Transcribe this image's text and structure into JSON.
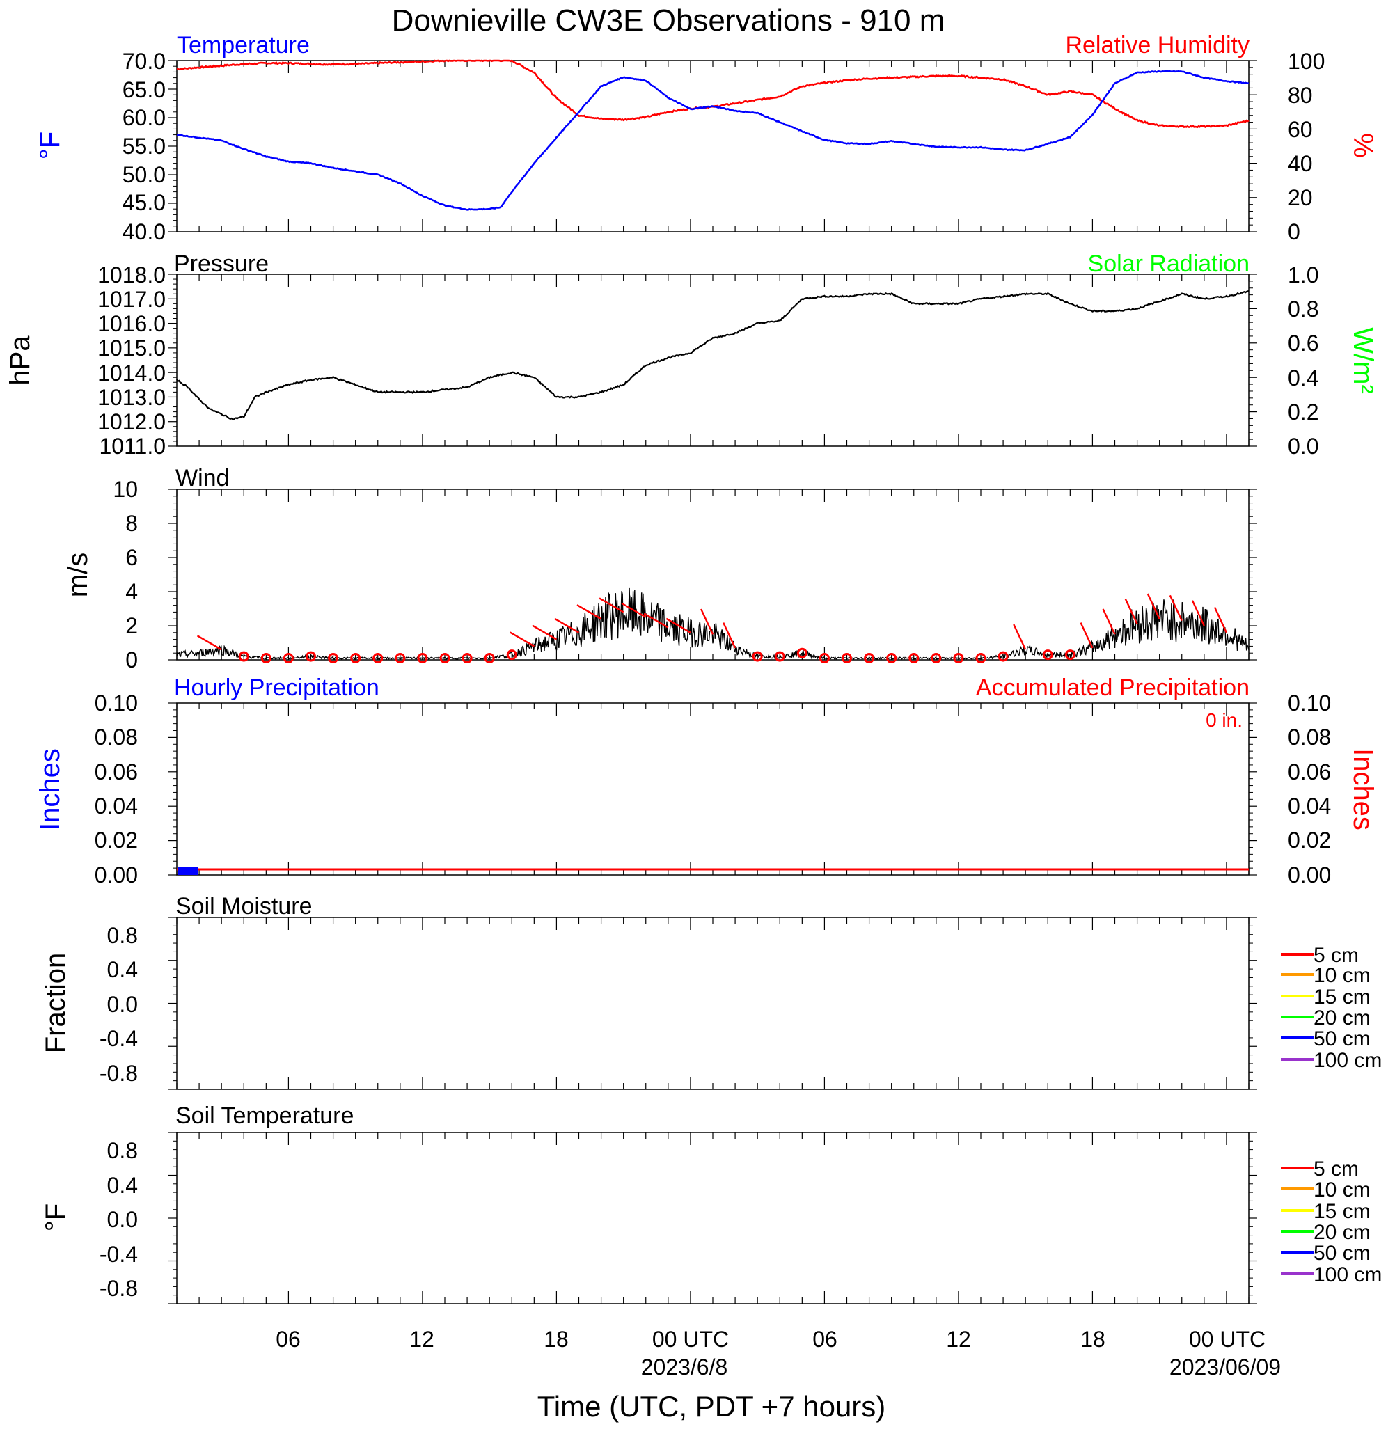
{
  "title": "Downieville CW3E Observations - 910 m",
  "xlabel": "Time (UTC, PDT +7 hours)",
  "x_ticks": [
    "06",
    "12",
    "18",
    "00 UTC",
    "06",
    "12",
    "18",
    "00 UTC"
  ],
  "x_dates": [
    "2023/6/8",
    "2023/06/09"
  ],
  "colors": {
    "temperature": "#0000ff",
    "humidity": "#ff0000",
    "pressure": "#000000",
    "solar": "#00ff00",
    "wind_speed": "#000000",
    "wind_barb": "#ff0000",
    "hourly_precip": "#0000ff",
    "accum_precip": "#ff0000",
    "depth_5cm": "#ff0000",
    "depth_10cm": "#ff9900",
    "depth_15cm": "#ffff00",
    "depth_20cm": "#00ff00",
    "depth_50cm": "#0000ff",
    "depth_100cm": "#9933cc"
  },
  "panels": {
    "temp_rh": {
      "left_title": "Temperature",
      "right_title": "Relative Humidity",
      "left_unit": "°F",
      "right_unit": "%",
      "left_ticks": [
        "70.0",
        "65.0",
        "60.0",
        "55.0",
        "50.0",
        "45.0",
        "40.0"
      ],
      "right_ticks": [
        "100",
        "80",
        "60",
        "40",
        "20",
        "0"
      ]
    },
    "pressure": {
      "left_title": "Pressure",
      "right_title": "Solar Radiation",
      "left_unit": "hPa",
      "right_unit": "W/m²",
      "left_ticks": [
        "1018.0",
        "1017.0",
        "1016.0",
        "1015.0",
        "1014.0",
        "1013.0",
        "1012.0",
        "1011.0"
      ],
      "right_ticks": [
        "1.0",
        "0.8",
        "0.6",
        "0.4",
        "0.2",
        "0.0"
      ]
    },
    "wind": {
      "left_title": "Wind",
      "left_unit": "m/s",
      "left_ticks": [
        "10",
        "8",
        "6",
        "4",
        "2",
        "0"
      ]
    },
    "precip": {
      "left_title": "Hourly Precipitation",
      "right_title": "Accumulated Precipitation",
      "total_label": "0 in.",
      "left_unit": "Inches",
      "right_unit": "Inches",
      "left_ticks": [
        "0.10",
        "0.08",
        "0.06",
        "0.04",
        "0.02",
        "0.00"
      ],
      "right_ticks": [
        "0.10",
        "0.08",
        "0.06",
        "0.04",
        "0.02",
        "0.00"
      ]
    },
    "soil_moisture": {
      "left_title": "Soil Moisture",
      "left_unit": "Fraction",
      "left_ticks": [
        "0.8",
        "0.4",
        "0.0",
        "-0.4",
        "-0.8"
      ],
      "legend": [
        "5 cm",
        "10 cm",
        "15 cm",
        "20 cm",
        "50 cm",
        "100 cm"
      ]
    },
    "soil_temp": {
      "left_title": "Soil Temperature",
      "left_unit": "°F",
      "left_ticks": [
        "0.8",
        "0.4",
        "0.0",
        "-0.4",
        "-0.8"
      ],
      "legend": [
        "5 cm",
        "10 cm",
        "15 cm",
        "20 cm",
        "50 cm",
        "100 cm"
      ]
    }
  },
  "chart_data": [
    {
      "type": "line",
      "title": "Temperature",
      "ylabel": "°F",
      "x_unit": "hours since 2023-06-07 01 UTC",
      "ylim": [
        40,
        70
      ],
      "x": [
        0,
        1,
        2,
        3,
        4,
        5,
        6,
        7,
        8,
        9,
        10,
        11,
        12,
        13,
        14,
        14.5,
        15,
        16,
        17,
        18,
        19,
        20,
        21,
        22,
        23,
        24,
        25,
        26,
        27,
        28,
        29,
        30,
        31,
        32,
        33,
        34,
        35,
        36,
        37,
        38,
        39,
        40,
        41,
        42,
        43,
        44,
        45,
        46,
        47,
        48
      ],
      "values": [
        57,
        56.5,
        56,
        54.5,
        53.2,
        52.3,
        52,
        51.2,
        50.6,
        50,
        48.5,
        46.3,
        44.6,
        43.9,
        44,
        44.3,
        47,
        52,
        56.5,
        61,
        65.5,
        67.1,
        66.5,
        63.5,
        61.5,
        62,
        61.2,
        60.8,
        59.2,
        57.6,
        56.1,
        55.5,
        55.4,
        55.9,
        55.4,
        54.9,
        54.8,
        54.8,
        54.4,
        54.3,
        55.4,
        56.6,
        60.5,
        66,
        67.9,
        68.1,
        68.1,
        67,
        66.4,
        66
      ]
    },
    {
      "type": "line",
      "title": "Relative Humidity",
      "ylabel": "%",
      "x_unit": "hours since 2023-06-07 01 UTC",
      "ylim": [
        0,
        100
      ],
      "x": [
        0,
        1,
        2,
        3,
        4,
        5,
        6,
        7,
        8,
        9,
        10,
        11,
        12,
        13,
        14,
        15,
        16,
        17,
        18,
        19,
        20,
        21,
        22,
        23,
        24,
        25,
        26,
        27,
        28,
        29,
        30,
        31,
        32,
        33,
        34,
        35,
        36,
        37,
        38,
        39,
        40,
        41,
        42,
        43,
        44,
        45,
        46,
        47,
        48
      ],
      "values": [
        95,
        96,
        97,
        98,
        98.5,
        98.5,
        98,
        97.8,
        98,
        98.5,
        99,
        99.5,
        100,
        100,
        100,
        100,
        93,
        78,
        68,
        66,
        65.5,
        67,
        70,
        72,
        73,
        75,
        77,
        79,
        85,
        87,
        88.5,
        89.5,
        90,
        90.5,
        91,
        91,
        90,
        89,
        85,
        80,
        82,
        80,
        72,
        65,
        62,
        61.5,
        61.5,
        62,
        65
      ]
    },
    {
      "type": "line",
      "title": "Pressure",
      "ylabel": "hPa",
      "x_unit": "hours since 2023-06-07 01 UTC",
      "ylim": [
        1011,
        1018
      ],
      "x": [
        0,
        0.5,
        1,
        1.5,
        2,
        2.5,
        3,
        3.5,
        4,
        5,
        6,
        7,
        8,
        9,
        10,
        11,
        12,
        13,
        14,
        15,
        16,
        17,
        18,
        19,
        20,
        21,
        22,
        23,
        24,
        25,
        26,
        27,
        28,
        29,
        30,
        31,
        32,
        33,
        34,
        35,
        36,
        37,
        38,
        39,
        40,
        41,
        42,
        43,
        44,
        45,
        46,
        47,
        48
      ],
      "values": [
        1013.7,
        1013.4,
        1012.9,
        1012.5,
        1012.3,
        1012.1,
        1012.2,
        1013.0,
        1013.2,
        1013.5,
        1013.7,
        1013.8,
        1013.5,
        1013.2,
        1013.2,
        1013.2,
        1013.3,
        1013.4,
        1013.8,
        1014.0,
        1013.8,
        1013.0,
        1013.0,
        1013.2,
        1013.5,
        1014.3,
        1014.6,
        1014.8,
        1015.4,
        1015.6,
        1016.0,
        1016.1,
        1017.0,
        1017.1,
        1017.1,
        1017.2,
        1017.2,
        1016.8,
        1016.8,
        1016.8,
        1017.0,
        1017.1,
        1017.2,
        1017.2,
        1016.8,
        1016.5,
        1016.5,
        1016.6,
        1016.9,
        1017.2,
        1017.0,
        1017.1,
        1017.3
      ]
    },
    {
      "type": "line",
      "title": "Wind",
      "ylabel": "m/s",
      "x_unit": "hours since 2023-06-07 01 UTC",
      "ylim": [
        0,
        10
      ],
      "x": [
        0,
        1,
        2,
        3,
        4,
        5,
        6,
        7,
        8,
        9,
        10,
        11,
        12,
        13,
        14,
        15,
        16,
        17,
        18,
        19,
        20,
        21,
        22,
        23,
        24,
        25,
        26,
        27,
        28,
        29,
        30,
        31,
        32,
        33,
        34,
        35,
        36,
        37,
        38,
        39,
        40,
        41,
        42,
        43,
        44,
        45,
        46,
        47,
        48
      ],
      "values": [
        0.3,
        0.4,
        0.6,
        0.2,
        0.1,
        0.1,
        0.2,
        0.1,
        0.1,
        0.1,
        0.1,
        0.1,
        0.1,
        0.1,
        0.1,
        0.3,
        0.8,
        1.2,
        1.6,
        2.4,
        2.8,
        2.5,
        1.9,
        1.6,
        1.5,
        0.7,
        0.2,
        0.2,
        0.4,
        0.1,
        0.1,
        0.1,
        0.1,
        0.1,
        0.1,
        0.1,
        0.1,
        0.2,
        0.6,
        0.3,
        0.3,
        0.7,
        1.5,
        2.1,
        2.4,
        2.3,
        2.0,
        1.6,
        0.7
      ]
    },
    {
      "type": "line",
      "title": "Accumulated Precipitation",
      "ylabel": "Inches",
      "x_unit": "hours since 2023-06-07 01 UTC",
      "ylim": [
        0,
        0.1
      ],
      "x": [
        0,
        48
      ],
      "values": [
        0,
        0
      ]
    },
    {
      "type": "bar",
      "title": "Hourly Precipitation",
      "ylabel": "Inches",
      "x_unit": "hours since 2023-06-07 01 UTC",
      "ylim": [
        0,
        0.1
      ],
      "x": [
        0.5
      ],
      "values": [
        0
      ]
    }
  ]
}
